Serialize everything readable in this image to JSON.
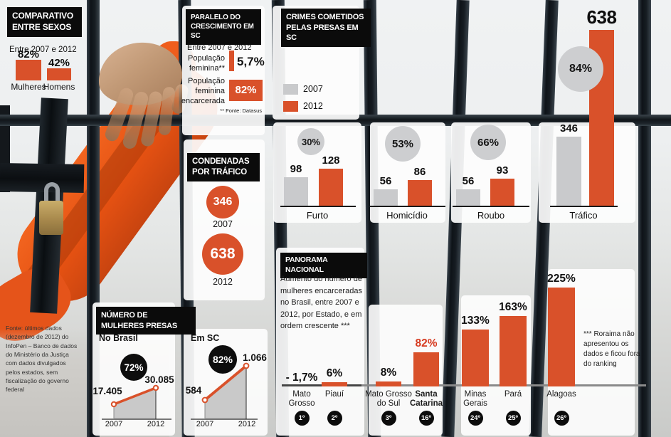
{
  "palette": {
    "orange": "#d9512a",
    "gray_bar": "#c9cacc",
    "black_box": "#0b0b0b",
    "highlight_red": "#d63a20"
  },
  "comparativo": {
    "title_line1": "COMPARATIVO",
    "title_line2": "ENTRE SEXOS",
    "subtitle": "Entre 2007 e 2012",
    "bars": [
      {
        "value": "82%",
        "label": "Mulheres"
      },
      {
        "value": "42%",
        "label": "Homens"
      }
    ]
  },
  "paralelo": {
    "title_line1": "PARALELO DO",
    "title_line2": "CRESCIMENTO EM SC",
    "subtitle": "Entre 2007 e 2012",
    "rows": [
      {
        "label": "População feminina**",
        "value": "5,7%"
      },
      {
        "label": "População feminina encarcerada",
        "value": "82%"
      }
    ],
    "footnote": "** Fonte: Datasus"
  },
  "crimes": {
    "title_line1": "CRIMES COMETIDOS",
    "title_line2": "PELAS PRESAS EM SC",
    "legend": [
      {
        "year": "2007"
      },
      {
        "year": "2012"
      }
    ]
  },
  "condenadas": {
    "title_line1": "CONDENADAS",
    "title_line2": "POR TRÁFICO",
    "items": [
      {
        "value": "346",
        "year": "2007"
      },
      {
        "value": "638",
        "year": "2012"
      }
    ]
  },
  "numero": {
    "title_line1": "NÚMERO DE",
    "title_line2": "MULHERES PRESAS",
    "charts": [
      {
        "region": "No Brasil",
        "growth": "72%",
        "start_value": "17.405",
        "end_value": "30.085",
        "start_year": "2007",
        "end_year": "2012"
      },
      {
        "region": "Em SC",
        "growth": "82%",
        "start_value": "584",
        "end_value": "1.066",
        "start_year": "2007",
        "end_year": "2012"
      }
    ]
  },
  "panorama": {
    "title": "PANORAMA NACIONAL",
    "description": "Aumento do número de mulheres encarceradas no Brasil, entre 2007 e 2012, por Estado, e em ordem crescente ***"
  },
  "footnotes": {
    "left": "Fonte: últimos dados (dezembro de 2012) do InfoPen – Banco de dados do Ministério da Justiça com dados divulgados pelos estados, sem fiscalização do governo federal",
    "roraima": "*** Roraima não apresentou os dados e ficou fora do ranking"
  },
  "chart_data": [
    {
      "type": "bar",
      "title": "Crimes cometidos pelas presas em SC",
      "categories": [
        "Furto",
        "Homicídio",
        "Roubo",
        "Tráfico"
      ],
      "series": [
        {
          "name": "2007",
          "values": [
            98,
            56,
            56,
            346
          ]
        },
        {
          "name": "2012",
          "values": [
            128,
            86,
            93,
            638
          ]
        }
      ],
      "growth_labels": [
        "30%",
        "53%",
        "66%",
        "84%"
      ],
      "legend_position": "top-left",
      "colors": {
        "2007": "#c9cacc",
        "2012": "#d9512a"
      }
    },
    {
      "type": "line",
      "title": "Número de mulheres presas",
      "series": [
        {
          "name": "No Brasil",
          "x": [
            "2007",
            "2012"
          ],
          "values": [
            17405,
            30085
          ],
          "growth": "72%"
        },
        {
          "name": "Em SC",
          "x": [
            "2007",
            "2012"
          ],
          "values": [
            584,
            1066
          ],
          "growth": "82%"
        }
      ]
    },
    {
      "type": "bar",
      "title": "Panorama nacional - aumento de mulheres encarceradas por Estado (2007-2012)",
      "categories": [
        "Mato Grosso",
        "Piauí",
        "Mato Grosso do Sul",
        "Santa Catarina",
        "Minas Gerais",
        "Pará",
        "Alagoas"
      ],
      "name_lines": [
        "Mato\nGrosso",
        "Piauí",
        "Mato Grosso\ndo Sul",
        "Santa\nCatarina",
        "Minas\nGerais",
        "Pará",
        "Alagoas"
      ],
      "values": [
        -1.7,
        6,
        8,
        82,
        133,
        163,
        225
      ],
      "value_labels": [
        "- 1,7%",
        "6%",
        "8%",
        "82%",
        "133%",
        "163%",
        "225%"
      ],
      "ranks": [
        "1º",
        "2º",
        "3º",
        "16º",
        "24º",
        "25º",
        "26º"
      ],
      "highlight_index": 3
    }
  ]
}
